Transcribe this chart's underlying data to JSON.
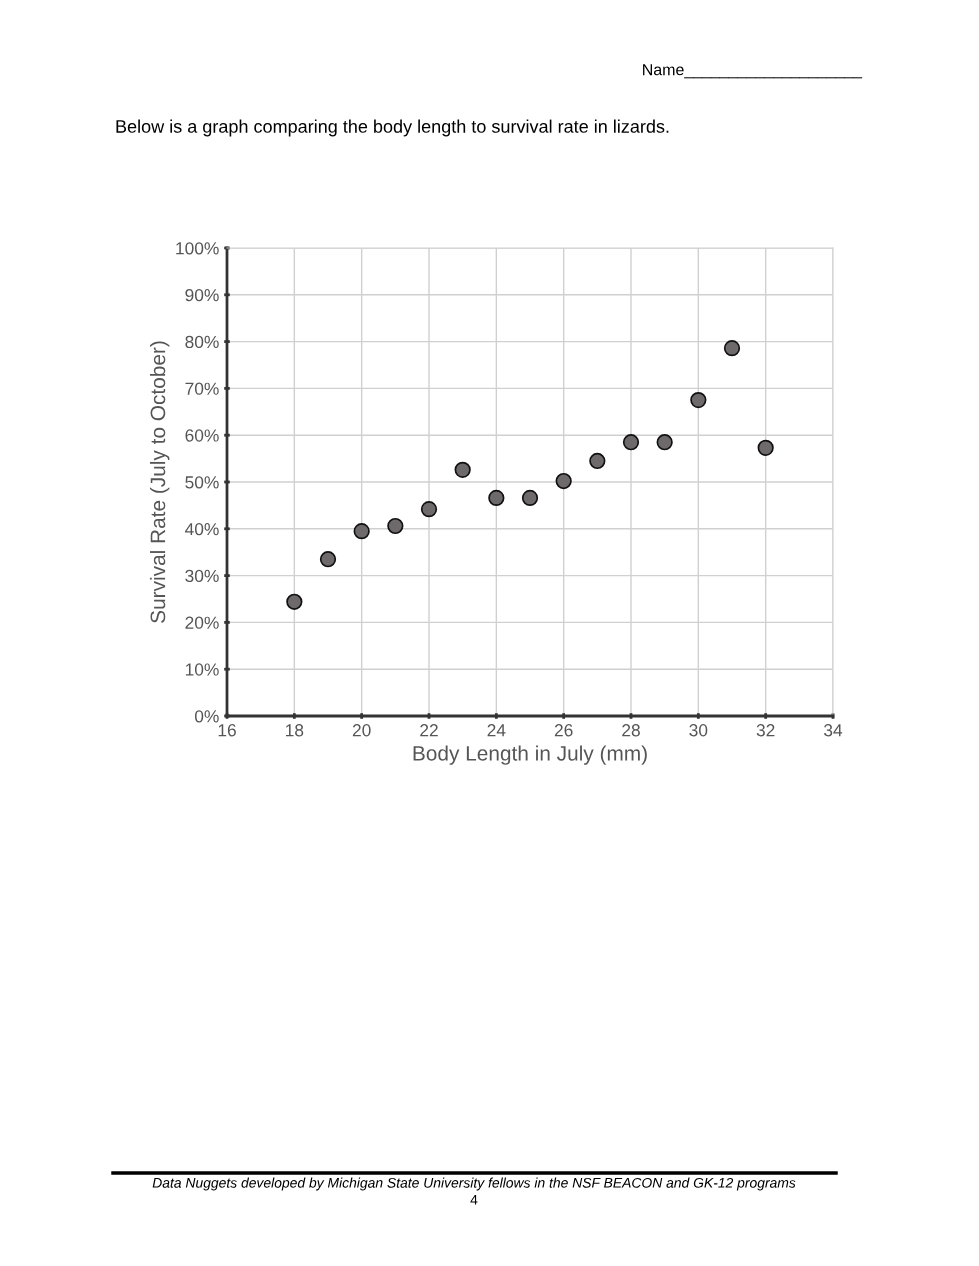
{
  "chart_data": {
    "type": "scatter",
    "title": "Below is a graph comparing the body length to survival rate in lizards.",
    "xlabel": "Body Length in July (mm)",
    "ylabel": "Survival Rate (July to October)",
    "x": [
      18,
      19,
      20,
      21,
      22,
      23,
      24,
      25,
      26,
      27,
      28,
      29,
      30,
      31,
      32
    ],
    "series": [
      {
        "color": "#6e6a6b",
        "values": [
          24.4,
          33.5,
          39.5,
          40.6,
          44.2,
          52.6,
          46.6,
          46.6,
          50.2,
          54.5,
          58.5,
          58.5,
          67.5,
          78.6,
          57.3
        ]
      }
    ],
    "xlim": [
      16,
      34
    ],
    "xticks": [
      16,
      18,
      20,
      22,
      24,
      26,
      28,
      30,
      32,
      34
    ],
    "ylim": [
      0,
      100
    ],
    "yticks": [
      {
        "value": 0,
        "label": "0%"
      },
      {
        "value": 10,
        "label": "10%"
      },
      {
        "value": 20,
        "label": "20%"
      },
      {
        "value": 30,
        "label": "30%"
      },
      {
        "value": 40,
        "label": "40%"
      },
      {
        "value": 50,
        "label": "50%"
      },
      {
        "value": 60,
        "label": "60%"
      },
      {
        "value": 70,
        "label": "70%"
      },
      {
        "value": 80,
        "label": "80%"
      },
      {
        "value": 90,
        "label": "90%"
      },
      {
        "value": 100,
        "label": "100%"
      }
    ],
    "grid": true,
    "marker": "circle",
    "annotations": [
      "Name____________________",
      "Data Nuggets developed by Michigan State University fellows in the NSF BEACON and GK-12 programs",
      "4"
    ]
  }
}
